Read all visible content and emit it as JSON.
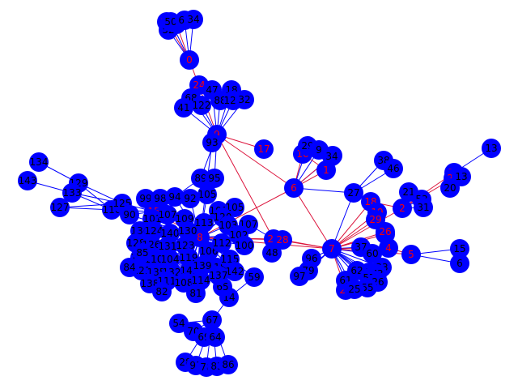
{
  "graph": {
    "colors": {
      "node_fill": "#0000ff",
      "node_label_regular": "#000000",
      "node_label_hub": "#ff0000",
      "edge_regular": "#0000ff",
      "edge_hub": "#dc143c"
    },
    "nodes": [
      {
        "id": "n0",
        "label": "0",
        "hub": true
      },
      {
        "id": "n1",
        "label": "1",
        "hub": true
      },
      {
        "id": "n2",
        "label": "2",
        "hub": true
      },
      {
        "id": "n3",
        "label": "3",
        "hub": true
      },
      {
        "id": "n4",
        "label": "4",
        "hub": true
      },
      {
        "id": "n5",
        "label": "5",
        "hub": true
      },
      {
        "id": "n6",
        "label": "6",
        "hub": true
      },
      {
        "id": "n7",
        "label": "7",
        "hub": true
      },
      {
        "id": "n8",
        "label": "8",
        "hub": true
      },
      {
        "id": "n9",
        "label": "9",
        "hub": true
      },
      {
        "id": "n10",
        "label": "10",
        "hub": true
      },
      {
        "id": "n13",
        "label": "13"
      },
      {
        "id": "n14",
        "label": "14",
        "hub": true
      },
      {
        "id": "n15",
        "label": "15",
        "hub": true
      },
      {
        "id": "n16",
        "label": "16",
        "hub": true
      },
      {
        "id": "n17",
        "label": "17",
        "hub": true
      },
      {
        "id": "n18",
        "label": "18",
        "hub": true
      },
      {
        "id": "n19",
        "label": "19",
        "hub": true
      },
      {
        "id": "n20",
        "label": "20",
        "hub": true
      },
      {
        "id": "n21",
        "label": "21",
        "hub": true
      },
      {
        "id": "n22",
        "label": "22",
        "hub": true
      },
      {
        "id": "n23",
        "label": "23",
        "hub": true
      },
      {
        "id": "n24",
        "label": "24",
        "hub": true
      },
      {
        "id": "n25",
        "label": "25",
        "hub": true
      },
      {
        "id": "n26",
        "label": "26",
        "hub": true
      },
      {
        "id": "n27",
        "label": "27"
      },
      {
        "id": "n28",
        "label": "28",
        "hub": true
      },
      {
        "id": "n29",
        "label": "29",
        "hub": true
      },
      {
        "id": "a1",
        "label": "29"
      },
      {
        "id": "a2",
        "label": "9"
      },
      {
        "id": "a3",
        "label": "34"
      },
      {
        "id": "a4",
        "label": "38"
      },
      {
        "id": "a5",
        "label": "46"
      },
      {
        "id": "a6",
        "label": "21"
      },
      {
        "id": "a7",
        "label": "53"
      },
      {
        "id": "a8",
        "label": "31"
      },
      {
        "id": "a9",
        "label": "20"
      },
      {
        "id": "a10",
        "label": "13"
      },
      {
        "id": "a11",
        "label": "15"
      },
      {
        "id": "a12",
        "label": "6"
      },
      {
        "id": "a13",
        "label": "37"
      },
      {
        "id": "a14",
        "label": "60"
      },
      {
        "id": "a15",
        "label": "33"
      },
      {
        "id": "a16",
        "label": "87"
      },
      {
        "id": "a17",
        "label": "62"
      },
      {
        "id": "a18",
        "label": "73"
      },
      {
        "id": "a19",
        "label": "61"
      },
      {
        "id": "a20",
        "label": "57"
      },
      {
        "id": "a21",
        "label": "26"
      },
      {
        "id": "a22",
        "label": "55"
      },
      {
        "id": "a23",
        "label": "25"
      },
      {
        "id": "a24",
        "label": "96"
      },
      {
        "id": "a25",
        "label": "79"
      },
      {
        "id": "a26",
        "label": "97"
      },
      {
        "id": "a27",
        "label": "48"
      },
      {
        "id": "a28",
        "label": "107"
      },
      {
        "id": "a29",
        "label": "59"
      },
      {
        "id": "a30",
        "label": "14"
      },
      {
        "id": "a31",
        "label": "65"
      },
      {
        "id": "a32",
        "label": "67"
      },
      {
        "id": "a33",
        "label": "54"
      },
      {
        "id": "a34",
        "label": "70"
      },
      {
        "id": "a35",
        "label": "69"
      },
      {
        "id": "a36",
        "label": "64"
      },
      {
        "id": "a37",
        "label": "28"
      },
      {
        "id": "a38",
        "label": "91"
      },
      {
        "id": "a39",
        "label": "78"
      },
      {
        "id": "a40",
        "label": "83"
      },
      {
        "id": "a41",
        "label": "86"
      },
      {
        "id": "a42",
        "label": "52"
      },
      {
        "id": "a43",
        "label": "50"
      },
      {
        "id": "a44",
        "label": "63"
      },
      {
        "id": "a45",
        "label": "34"
      },
      {
        "id": "a46",
        "label": "68"
      },
      {
        "id": "a47",
        "label": "41"
      },
      {
        "id": "a48",
        "label": "122"
      },
      {
        "id": "a49",
        "label": "47"
      },
      {
        "id": "a50",
        "label": "18"
      },
      {
        "id": "a51",
        "label": "88"
      },
      {
        "id": "a52",
        "label": "129"
      },
      {
        "id": "a53",
        "label": "32"
      },
      {
        "id": "a54",
        "label": "93"
      },
      {
        "id": "a55",
        "label": "89"
      },
      {
        "id": "a56",
        "label": "95"
      },
      {
        "id": "a57",
        "label": "134"
      },
      {
        "id": "a58",
        "label": "143"
      },
      {
        "id": "a59",
        "label": "129"
      },
      {
        "id": "a60",
        "label": "133"
      },
      {
        "id": "a61",
        "label": "127"
      },
      {
        "id": "a62",
        "label": "116"
      },
      {
        "id": "a63",
        "label": "125"
      },
      {
        "id": "a64",
        "label": "105"
      },
      {
        "id": "a65",
        "label": "109"
      },
      {
        "id": "a66",
        "label": "105"
      },
      {
        "id": "a67",
        "label": "120"
      },
      {
        "id": "a68",
        "label": "101"
      },
      {
        "id": "a69",
        "label": "107"
      },
      {
        "id": "a70",
        "label": "109"
      },
      {
        "id": "a71",
        "label": "113"
      },
      {
        "id": "a72",
        "label": "136"
      },
      {
        "id": "a73",
        "label": "124"
      },
      {
        "id": "a74",
        "label": "140"
      },
      {
        "id": "a75",
        "label": "130"
      },
      {
        "id": "a76",
        "label": "128"
      },
      {
        "id": "a77",
        "label": "126"
      },
      {
        "id": "a78",
        "label": "131"
      },
      {
        "id": "a79",
        "label": "123"
      },
      {
        "id": "a80",
        "label": "117"
      },
      {
        "id": "a81",
        "label": "110"
      },
      {
        "id": "a82",
        "label": "104"
      },
      {
        "id": "a83",
        "label": "119"
      },
      {
        "id": "a84",
        "label": "121"
      },
      {
        "id": "a85",
        "label": "135"
      },
      {
        "id": "a86",
        "label": "132"
      },
      {
        "id": "a87",
        "label": "141"
      },
      {
        "id": "a88",
        "label": "138"
      },
      {
        "id": "a89",
        "label": "111"
      },
      {
        "id": "a90",
        "label": "108"
      },
      {
        "id": "a91",
        "label": "114"
      },
      {
        "id": "a92",
        "label": "106"
      },
      {
        "id": "a93",
        "label": "112"
      },
      {
        "id": "a94",
        "label": "118"
      },
      {
        "id": "a95",
        "label": "115"
      },
      {
        "id": "a96",
        "label": "139"
      },
      {
        "id": "a97",
        "label": "142"
      },
      {
        "id": "a98",
        "label": "137"
      },
      {
        "id": "a99",
        "label": "103"
      },
      {
        "id": "a100",
        "label": "102"
      },
      {
        "id": "a101",
        "label": "100"
      },
      {
        "id": "a102",
        "label": "99"
      },
      {
        "id": "a103",
        "label": "98"
      },
      {
        "id": "a104",
        "label": "94"
      },
      {
        "id": "a105",
        "label": "92"
      },
      {
        "id": "a106",
        "label": "90"
      },
      {
        "id": "a107",
        "label": "85"
      },
      {
        "id": "a108",
        "label": "84"
      },
      {
        "id": "a109",
        "label": "82"
      },
      {
        "id": "a110",
        "label": "81"
      }
    ]
  }
}
